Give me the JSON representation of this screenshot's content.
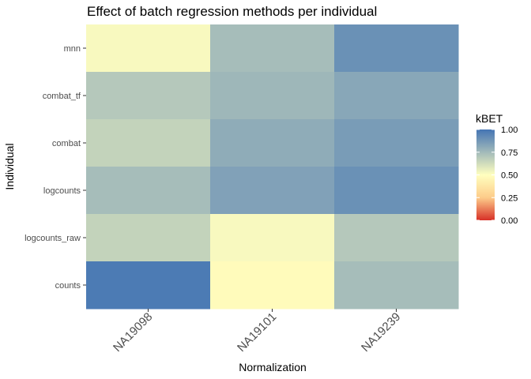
{
  "chart_data": {
    "type": "heatmap",
    "title": "Effect of batch regression methods per individual",
    "xlabel": "Normalization",
    "ylabel": "Individual",
    "x_categories": [
      "NA19098",
      "NA19101",
      "NA19239"
    ],
    "y_categories": [
      "mnn",
      "combat_tf",
      "combat",
      "logcounts",
      "logcounts_raw",
      "counts"
    ],
    "values": [
      [
        0.52,
        0.74,
        0.9
      ],
      [
        0.7,
        0.76,
        0.82
      ],
      [
        0.66,
        0.8,
        0.86
      ],
      [
        0.74,
        0.84,
        0.9
      ],
      [
        0.66,
        0.52,
        0.7
      ],
      [
        0.98,
        0.48,
        0.74
      ]
    ],
    "legend": {
      "title": "kBET",
      "ticks": [
        "1.00",
        "0.75",
        "0.50",
        "0.25",
        "0.00"
      ],
      "placement": "right"
    },
    "zlim": [
      0,
      1
    ],
    "colors": {
      "low": "#d73027",
      "mid_low": "#fdcc8a",
      "mid": "#ffffbf",
      "high": "#4575b4",
      "panel_bg": "#ebebeb"
    }
  }
}
